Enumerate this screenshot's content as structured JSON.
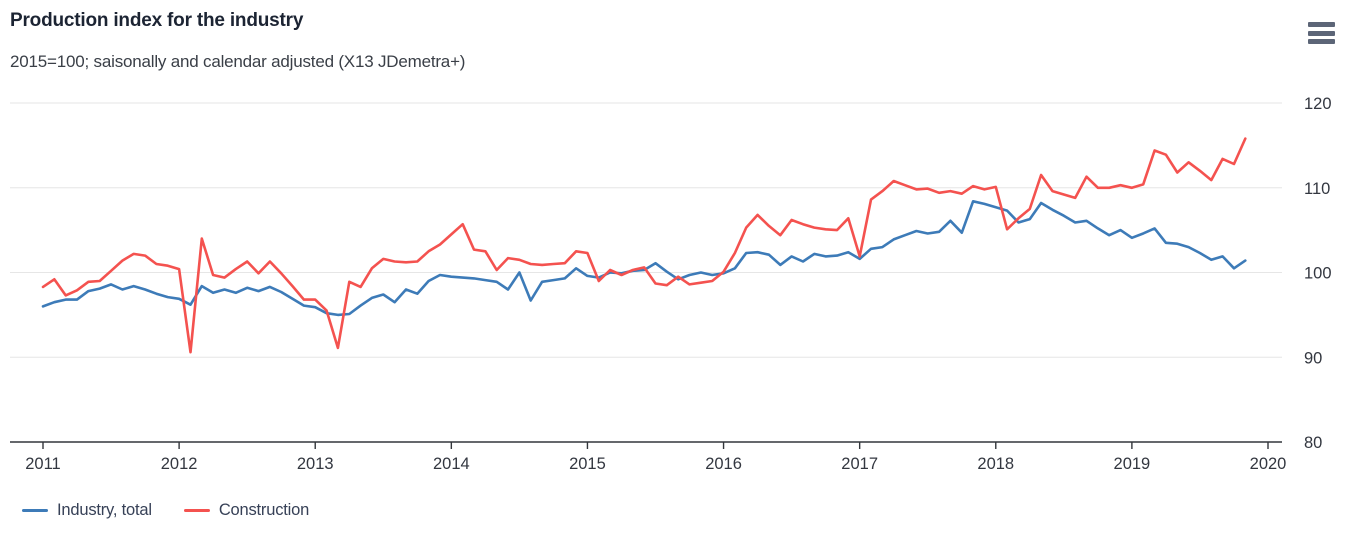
{
  "header": {
    "title": "Production index for the industry",
    "subtitle": "2015=100; saisonally and calendar adjusted (X13 JDemetra+)",
    "menu_icon": "hamburger-menu-icon"
  },
  "colors": {
    "industry_line": "#3d7bb8",
    "construction_line": "#f4524f",
    "gridline": "#e6e6e6",
    "axis_line": "#32363b",
    "axis_label": "#333740",
    "title_text": "#1c2433",
    "subtitle_text": "#3a3f47",
    "legend_text": "#374157",
    "menu_icon": "#5c6577"
  },
  "legend": {
    "items": [
      {
        "label": "Industry, total",
        "color": "#3d7bb8"
      },
      {
        "label": "Construction",
        "color": "#f4524f"
      }
    ]
  },
  "chart_data": {
    "type": "line",
    "title": "Production index for the industry",
    "subtitle": "2015=100; saisonally and calendar adjusted (X13 JDemetra+)",
    "xlabel": "",
    "ylabel": "",
    "x_start": "2011-01",
    "x_end": "2019-11",
    "x_freq": "monthly",
    "n_points": 107,
    "x_ticks": [
      2011,
      2012,
      2013,
      2014,
      2015,
      2016,
      2017,
      2018,
      2019,
      2020
    ],
    "y_ticks": [
      80,
      90,
      100,
      110,
      120
    ],
    "ylim": [
      80,
      121
    ],
    "grid": "horizontal",
    "legend_position": "bottom-left",
    "series": [
      {
        "name": "Industry, total",
        "color": "#3d7bb8",
        "values": [
          96.0,
          96.5,
          96.8,
          96.8,
          97.8,
          98.1,
          98.6,
          98.0,
          98.4,
          98.0,
          97.5,
          97.1,
          96.9,
          96.2,
          98.4,
          97.6,
          98.0,
          97.6,
          98.2,
          97.8,
          98.3,
          97.7,
          96.9,
          96.1,
          95.9,
          95.2,
          95.0,
          95.1,
          96.1,
          97.0,
          97.4,
          96.5,
          98.0,
          97.5,
          99.0,
          99.7,
          99.5,
          99.4,
          99.3,
          99.1,
          98.9,
          98.0,
          100.0,
          96.7,
          98.9,
          99.1,
          99.3,
          100.5,
          99.6,
          99.4,
          100.0,
          99.9,
          100.2,
          100.3,
          101.1,
          100.1,
          99.2,
          99.7,
          100.0,
          99.7,
          99.9,
          100.5,
          102.3,
          102.4,
          102.1,
          100.9,
          101.9,
          101.3,
          102.2,
          101.9,
          102.0,
          102.4,
          101.6,
          102.8,
          103.0,
          103.9,
          104.4,
          104.9,
          104.6,
          104.8,
          106.1,
          104.7,
          108.4,
          108.1,
          107.7,
          107.3,
          105.9,
          106.3,
          108.2,
          107.4,
          106.7,
          105.9,
          106.1,
          105.2,
          104.4,
          105.0,
          104.1,
          104.6,
          105.2,
          103.5,
          103.4,
          103.0,
          102.3,
          101.5,
          101.9,
          100.5,
          101.4
        ]
      },
      {
        "name": "Construction",
        "color": "#f4524f",
        "values": [
          98.3,
          99.2,
          97.3,
          97.9,
          98.9,
          99.0,
          100.2,
          101.4,
          102.2,
          102.0,
          101.0,
          100.8,
          100.4,
          90.6,
          104.0,
          99.7,
          99.4,
          100.4,
          101.3,
          99.9,
          101.3,
          99.9,
          98.4,
          96.8,
          96.8,
          95.5,
          91.1,
          98.9,
          98.3,
          100.5,
          101.6,
          101.3,
          101.2,
          101.3,
          102.5,
          103.3,
          104.5,
          105.7,
          102.7,
          102.5,
          100.3,
          101.7,
          101.5,
          101.0,
          100.9,
          101.0,
          101.1,
          102.5,
          102.3,
          99.0,
          100.3,
          99.7,
          100.3,
          100.6,
          98.7,
          98.5,
          99.5,
          98.6,
          98.8,
          99.0,
          100.1,
          102.3,
          105.3,
          106.8,
          105.5,
          104.4,
          106.2,
          105.7,
          105.3,
          105.1,
          105.0,
          106.4,
          101.9,
          108.6,
          109.6,
          110.8,
          110.3,
          109.8,
          109.9,
          109.4,
          109.6,
          109.3,
          110.2,
          109.8,
          110.1,
          105.1,
          106.4,
          107.5,
          111.5,
          109.6,
          109.2,
          108.8,
          111.3,
          110.0,
          110.0,
          110.3,
          110.0,
          110.4,
          114.4,
          113.9,
          111.8,
          113.0,
          112.0,
          110.9,
          113.4,
          112.8,
          115.8
        ]
      }
    ]
  }
}
